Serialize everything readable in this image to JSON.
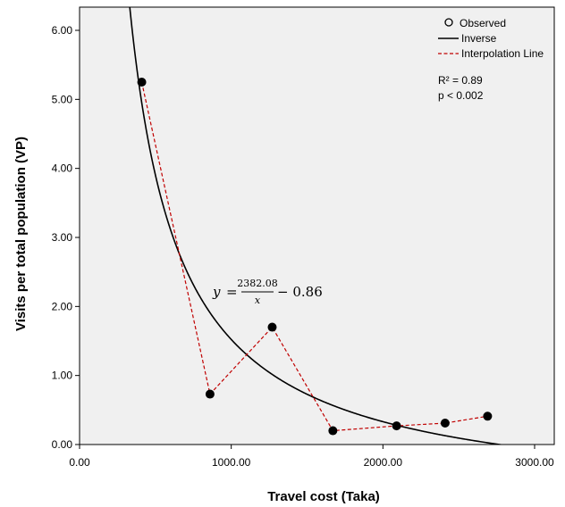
{
  "chart_data": {
    "type": "scatter",
    "xlabel": "Travel cost (Taka)",
    "ylabel": "Visits per total population (VP)",
    "xlim": [
      0,
      3000
    ],
    "ylim": [
      0,
      6.3
    ],
    "x_ticks": [
      "0.00",
      "1000.00",
      "2000.00",
      "3000.00"
    ],
    "y_ticks": [
      "0.00",
      "1.00",
      "2.00",
      "3.00",
      "4.00",
      "5.00",
      "6.00"
    ],
    "grid": false,
    "legend_position": "top-right",
    "series": [
      {
        "name": "Observed",
        "type": "scatter",
        "x": [
          410,
          860,
          1270,
          1670,
          2090,
          2410,
          2690
        ],
        "y": [
          5.25,
          0.73,
          1.7,
          0.2,
          0.27,
          0.31,
          0.41
        ]
      },
      {
        "name": "Inverse",
        "type": "line",
        "equation": {
          "a": 2382.08,
          "b": -0.86
        }
      },
      {
        "name": "Interpolation Line",
        "type": "line",
        "style": "dashed",
        "x": [
          410,
          860,
          1270,
          1670,
          2090,
          2410,
          2690
        ],
        "y": [
          5.25,
          0.73,
          1.7,
          0.2,
          0.27,
          0.31,
          0.41
        ]
      }
    ],
    "annotations": {
      "r2": "R² = 0.89",
      "p": "p < 0.002",
      "eq_y": "y",
      "eq_eq": "=",
      "eq_num": "2382.08",
      "eq_den": "x",
      "eq_tail": "− 0.86"
    },
    "colors": {
      "plot_background": "#f0f0f0",
      "observed": "#000000",
      "inverse": "#000000",
      "interpolation": "#c00000"
    }
  }
}
